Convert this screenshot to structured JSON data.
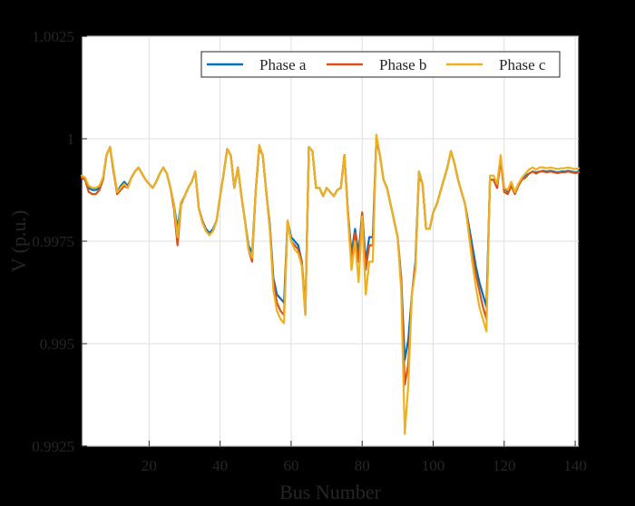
{
  "chart_data": {
    "type": "line",
    "title": "",
    "xlabel": "Bus Number",
    "ylabel": "V (p.u.)",
    "xlim": [
      1,
      141
    ],
    "ylim": [
      0.9925,
      1.0025
    ],
    "xticks": [
      20,
      40,
      60,
      80,
      100,
      120,
      140
    ],
    "yticks": [
      0.9925,
      0.995,
      0.9975,
      1,
      1.0025
    ],
    "ytick_labels": [
      "0.9925",
      "0.995",
      "0.9975",
      "1",
      "1.0025"
    ],
    "grid": true,
    "legend_position": "top-right",
    "x": [
      1,
      2,
      3,
      4,
      5,
      6,
      7,
      8,
      9,
      10,
      11,
      12,
      13,
      14,
      15,
      16,
      17,
      18,
      19,
      20,
      21,
      22,
      23,
      24,
      25,
      26,
      27,
      28,
      29,
      30,
      31,
      32,
      33,
      34,
      35,
      36,
      37,
      38,
      39,
      40,
      41,
      42,
      43,
      44,
      45,
      46,
      47,
      48,
      49,
      50,
      51,
      52,
      53,
      54,
      55,
      56,
      57,
      58,
      59,
      60,
      61,
      62,
      63,
      64,
      65,
      66,
      67,
      68,
      69,
      70,
      71,
      72,
      73,
      74,
      75,
      76,
      77,
      78,
      79,
      80,
      81,
      82,
      83,
      84,
      85,
      86,
      87,
      88,
      89,
      90,
      91,
      92,
      93,
      94,
      95,
      96,
      97,
      98,
      99,
      100,
      101,
      102,
      103,
      104,
      105,
      106,
      107,
      108,
      109,
      110,
      111,
      112,
      113,
      114,
      115,
      116,
      117,
      118,
      119,
      120,
      121,
      122,
      123,
      124,
      125,
      126,
      127,
      128,
      129,
      130,
      131,
      132,
      133,
      134,
      135,
      136,
      137,
      138,
      139,
      140,
      141
    ],
    "series": [
      {
        "name": "Phase a",
        "color": "#0072BD",
        "values": [
          0.99905,
          0.999,
          0.9988,
          0.99875,
          0.99875,
          0.9988,
          0.999,
          0.9996,
          0.9998,
          0.9992,
          0.9987,
          0.99885,
          0.99895,
          0.99885,
          0.99905,
          0.9992,
          0.9993,
          0.99915,
          0.999,
          0.9989,
          0.9988,
          0.99895,
          0.99915,
          0.9993,
          0.99915,
          0.9988,
          0.9984,
          0.9978,
          0.99845,
          0.9986,
          0.9988,
          0.99895,
          0.9992,
          0.9983,
          0.998,
          0.9978,
          0.9977,
          0.9978,
          0.998,
          0.9986,
          0.99915,
          0.99975,
          0.9996,
          0.9988,
          0.9993,
          0.9986,
          0.998,
          0.9974,
          0.9972,
          0.9987,
          0.9998,
          0.9996,
          0.9987,
          0.9979,
          0.9966,
          0.9962,
          0.9961,
          0.996,
          0.998,
          0.9976,
          0.9975,
          0.9974,
          0.997,
          0.9958,
          0.9998,
          0.9997,
          0.9988,
          0.9988,
          0.9986,
          0.9988,
          0.9987,
          0.9986,
          0.99875,
          0.9988,
          0.9996,
          0.9982,
          0.9972,
          0.9978,
          0.9972,
          0.9982,
          0.997,
          0.9976,
          0.9976,
          1.0,
          0.9996,
          0.999,
          0.9988,
          0.9984,
          0.998,
          0.9976,
          0.9966,
          0.9946,
          0.9951,
          0.9962,
          0.997,
          0.9992,
          0.9989,
          0.9978,
          0.9978,
          0.9982,
          0.9984,
          0.9987,
          0.999,
          0.9993,
          0.9997,
          0.9994,
          0.999,
          0.9987,
          0.9984,
          0.9979,
          0.9974,
          0.9969,
          0.9965,
          0.9962,
          0.9959,
          0.999,
          0.999,
          0.9988,
          0.9995,
          0.9988,
          0.9987,
          0.9989,
          0.9987,
          0.9989,
          0.999,
          0.9991,
          0.99915,
          0.9992,
          0.99918,
          0.9992,
          0.99922,
          0.9992,
          0.99922,
          0.9992,
          0.99918,
          0.9992,
          0.9992,
          0.99922,
          0.9992,
          0.99918,
          0.9992
        ]
      },
      {
        "name": "Phase b",
        "color": "#D95319",
        "values": [
          0.99905,
          0.999,
          0.9987,
          0.99865,
          0.99865,
          0.99875,
          0.999,
          0.9996,
          0.9998,
          0.9992,
          0.99865,
          0.99875,
          0.99885,
          0.9988,
          0.99905,
          0.9992,
          0.9993,
          0.99915,
          0.999,
          0.9989,
          0.9988,
          0.99895,
          0.99915,
          0.9993,
          0.99915,
          0.9988,
          0.9983,
          0.9974,
          0.9984,
          0.9986,
          0.9988,
          0.99895,
          0.9992,
          0.9983,
          0.998,
          0.99775,
          0.99765,
          0.99775,
          0.998,
          0.9986,
          0.99915,
          0.99975,
          0.9996,
          0.9988,
          0.9993,
          0.9986,
          0.998,
          0.9973,
          0.997,
          0.9987,
          0.9998,
          0.9996,
          0.9987,
          0.9978,
          0.9965,
          0.996,
          0.9958,
          0.9957,
          0.998,
          0.9975,
          0.9974,
          0.9973,
          0.997,
          0.9957,
          0.9998,
          0.9997,
          0.9988,
          0.9988,
          0.9986,
          0.9988,
          0.9987,
          0.9986,
          0.99875,
          0.9988,
          0.9996,
          0.9982,
          0.997,
          0.9977,
          0.997,
          0.9982,
          0.9968,
          0.9974,
          0.9974,
          1.0,
          0.9996,
          0.999,
          0.9988,
          0.9984,
          0.998,
          0.9976,
          0.9965,
          0.994,
          0.9945,
          0.9962,
          0.9969,
          0.9991,
          0.9989,
          0.9978,
          0.9978,
          0.9982,
          0.9984,
          0.9987,
          0.999,
          0.9993,
          0.9997,
          0.9994,
          0.999,
          0.9987,
          0.9984,
          0.9978,
          0.9972,
          0.9967,
          0.9963,
          0.9959,
          0.9956,
          0.999,
          0.999,
          0.9988,
          0.9995,
          0.9987,
          0.99865,
          0.99885,
          0.99865,
          0.99885,
          0.999,
          0.99905,
          0.99915,
          0.9992,
          0.99915,
          0.9992,
          0.9992,
          0.99918,
          0.9992,
          0.99918,
          0.99916,
          0.99918,
          0.99918,
          0.9992,
          0.99918,
          0.99916,
          0.99918
        ]
      },
      {
        "name": "Phase c",
        "color": "#EDB120",
        "values": [
          0.9991,
          0.99905,
          0.99885,
          0.9988,
          0.9988,
          0.99885,
          0.99905,
          0.9996,
          0.9998,
          0.99925,
          0.9987,
          0.9988,
          0.9989,
          0.9988,
          0.99905,
          0.9992,
          0.9993,
          0.99915,
          0.999,
          0.9989,
          0.9988,
          0.99895,
          0.99915,
          0.9993,
          0.99915,
          0.9988,
          0.9984,
          0.9976,
          0.99845,
          0.9986,
          0.9988,
          0.99895,
          0.9992,
          0.9983,
          0.99795,
          0.99775,
          0.99765,
          0.99775,
          0.998,
          0.9986,
          0.99915,
          0.99975,
          0.9996,
          0.9988,
          0.9993,
          0.9986,
          0.998,
          0.9973,
          0.9971,
          0.9987,
          0.99985,
          0.9996,
          0.9987,
          0.9978,
          0.9963,
          0.9958,
          0.9956,
          0.9955,
          0.998,
          0.9975,
          0.9973,
          0.9972,
          0.9969,
          0.9957,
          0.9998,
          0.9997,
          0.9988,
          0.9988,
          0.9986,
          0.9988,
          0.9987,
          0.9986,
          0.99875,
          0.9988,
          0.9996,
          0.9981,
          0.9968,
          0.9975,
          0.9965,
          0.9981,
          0.9962,
          0.997,
          0.997,
          1.0001,
          0.9996,
          0.999,
          0.9988,
          0.9984,
          0.998,
          0.9976,
          0.9963,
          0.9928,
          0.994,
          0.9962,
          0.9968,
          0.9992,
          0.9989,
          0.9978,
          0.9978,
          0.9982,
          0.9984,
          0.9987,
          0.999,
          0.9993,
          0.9997,
          0.9994,
          0.999,
          0.9987,
          0.9984,
          0.9977,
          0.997,
          0.9964,
          0.9959,
          0.9956,
          0.9953,
          0.9991,
          0.9991,
          0.9989,
          0.9996,
          0.9988,
          0.99875,
          0.99895,
          0.9987,
          0.9989,
          0.99905,
          0.99915,
          0.99925,
          0.9993,
          0.99925,
          0.9993,
          0.9993,
          0.99928,
          0.9993,
          0.99928,
          0.99926,
          0.99928,
          0.99928,
          0.9993,
          0.99928,
          0.99926,
          0.99928
        ]
      }
    ]
  }
}
